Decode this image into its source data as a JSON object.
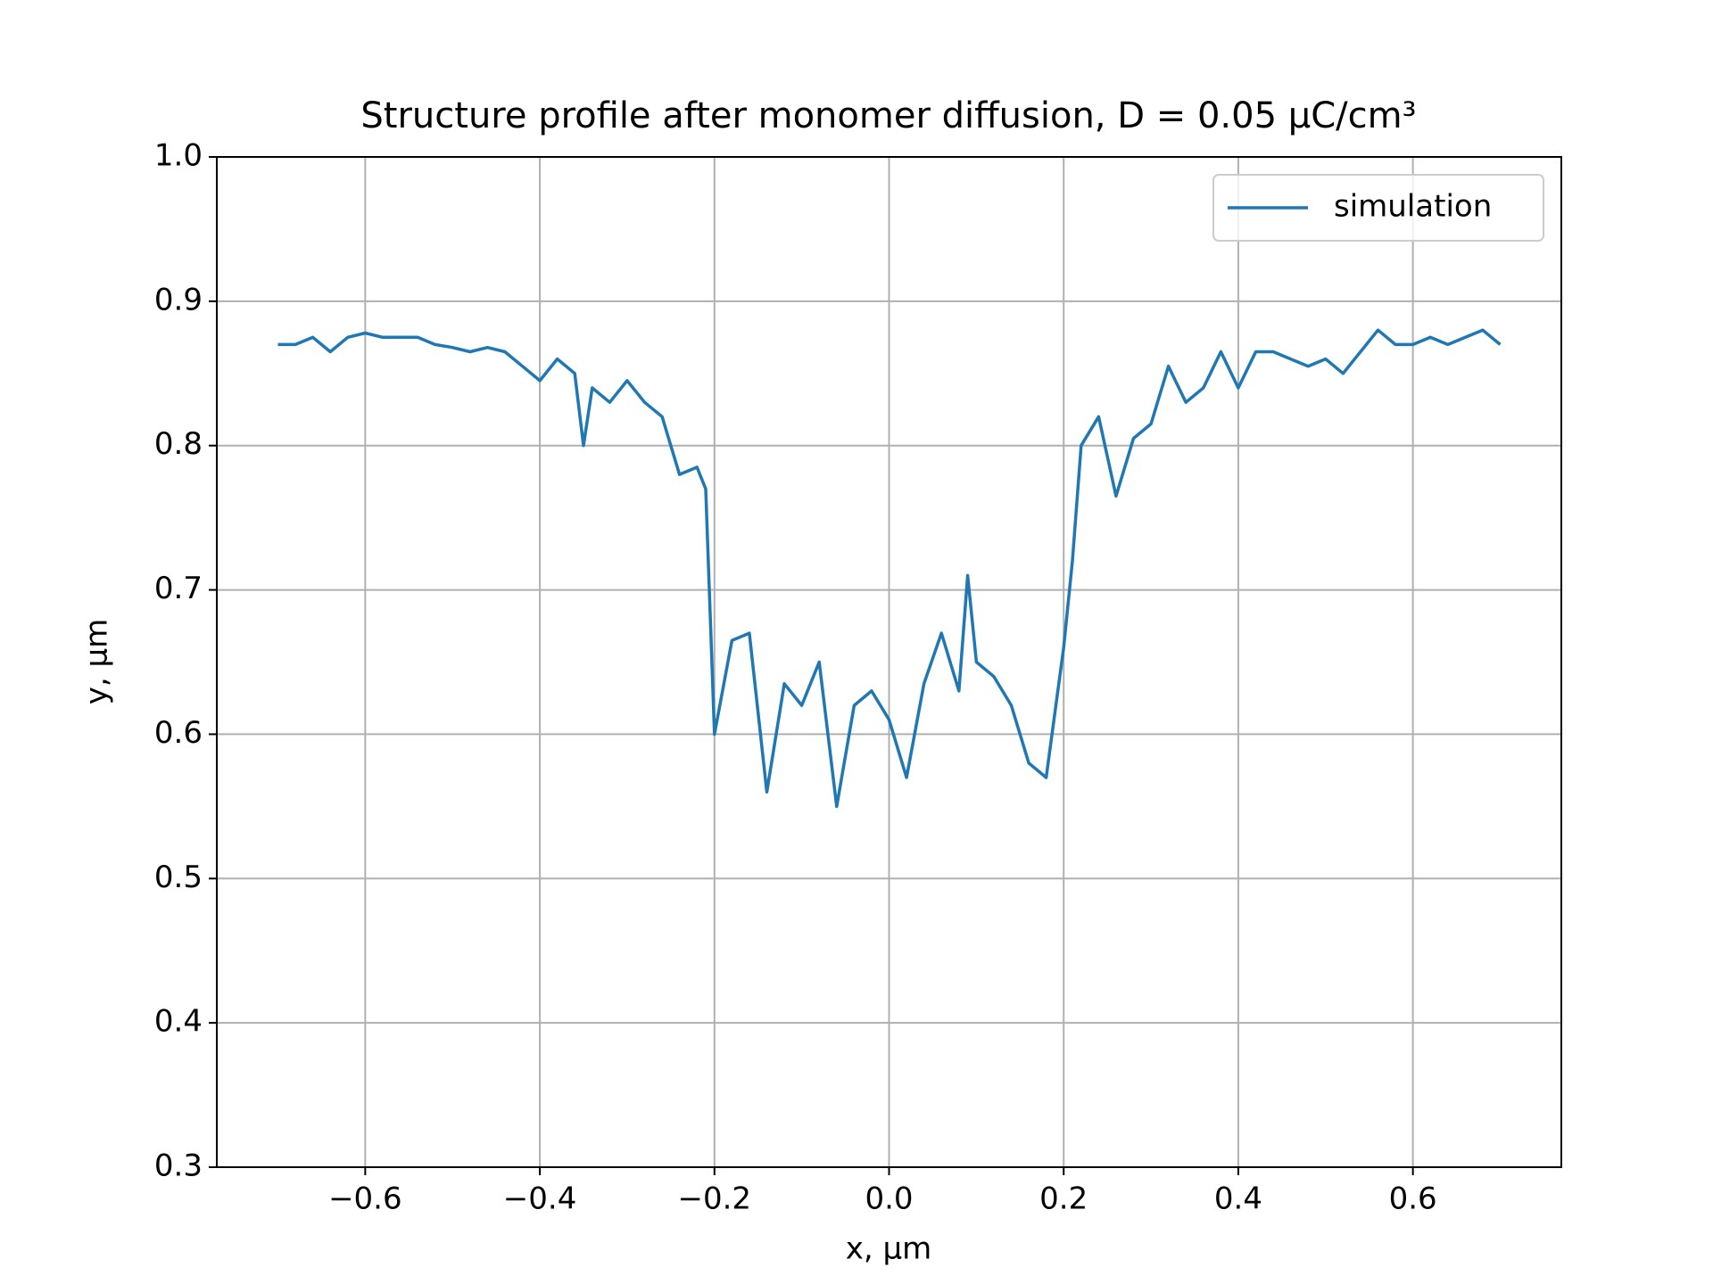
{
  "chart_data": {
    "type": "line",
    "title": "Structure profile after monomer diffusion, D = 0.05 μC/cm³",
    "x_label": "x, μm",
    "y_label": "y, μm",
    "x": [
      -0.7,
      -0.68,
      -0.66,
      -0.64,
      -0.62,
      -0.6,
      -0.58,
      -0.56,
      -0.54,
      -0.52,
      -0.5,
      -0.48,
      -0.46,
      -0.44,
      -0.42,
      -0.4,
      -0.38,
      -0.36,
      -0.35,
      -0.34,
      -0.32,
      -0.3,
      -0.28,
      -0.26,
      -0.24,
      -0.22,
      -0.21,
      -0.2,
      -0.18,
      -0.16,
      -0.14,
      -0.12,
      -0.1,
      -0.08,
      -0.06,
      -0.04,
      -0.02,
      0.0,
      0.02,
      0.04,
      0.06,
      0.08,
      0.09,
      0.1,
      0.12,
      0.14,
      0.16,
      0.18,
      0.2,
      0.21,
      0.22,
      0.24,
      0.26,
      0.28,
      0.3,
      0.32,
      0.34,
      0.36,
      0.38,
      0.4,
      0.42,
      0.44,
      0.46,
      0.48,
      0.5,
      0.52,
      0.54,
      0.56,
      0.58,
      0.6,
      0.62,
      0.64,
      0.66,
      0.68,
      0.7
    ],
    "series": [
      {
        "name": "simulation",
        "color": "#1f77b4",
        "values": [
          0.87,
          0.87,
          0.875,
          0.865,
          0.875,
          0.878,
          0.875,
          0.875,
          0.875,
          0.87,
          0.868,
          0.865,
          0.868,
          0.865,
          0.855,
          0.845,
          0.86,
          0.85,
          0.8,
          0.84,
          0.83,
          0.845,
          0.83,
          0.82,
          0.78,
          0.785,
          0.77,
          0.6,
          0.665,
          0.67,
          0.56,
          0.635,
          0.62,
          0.65,
          0.55,
          0.62,
          0.63,
          0.61,
          0.57,
          0.635,
          0.67,
          0.63,
          0.71,
          0.65,
          0.64,
          0.62,
          0.58,
          0.57,
          0.66,
          0.72,
          0.8,
          0.82,
          0.765,
          0.805,
          0.815,
          0.855,
          0.83,
          0.84,
          0.865,
          0.84,
          0.865,
          0.865,
          0.86,
          0.855,
          0.86,
          0.85,
          0.865,
          0.88,
          0.87,
          0.87,
          0.875,
          0.87,
          0.875,
          0.88,
          0.87
        ]
      }
    ],
    "xlim": [
      -0.77,
      0.77
    ],
    "xticks": [
      {
        "value": -0.6,
        "label": "−0.6"
      },
      {
        "value": -0.4,
        "label": "−0.4"
      },
      {
        "value": -0.2,
        "label": "−0.2"
      },
      {
        "value": 0,
        "label": "0.0"
      },
      0.2,
      0.4,
      0.6
    ],
    "ylim": [
      0.3,
      1.0
    ],
    "yticks": [
      0.3,
      0.4,
      0.5,
      0.6,
      0.7,
      0.8,
      0.9,
      {
        "value": 1,
        "label": "1.0"
      }
    ],
    "grid": true,
    "legend": "upper right"
  }
}
